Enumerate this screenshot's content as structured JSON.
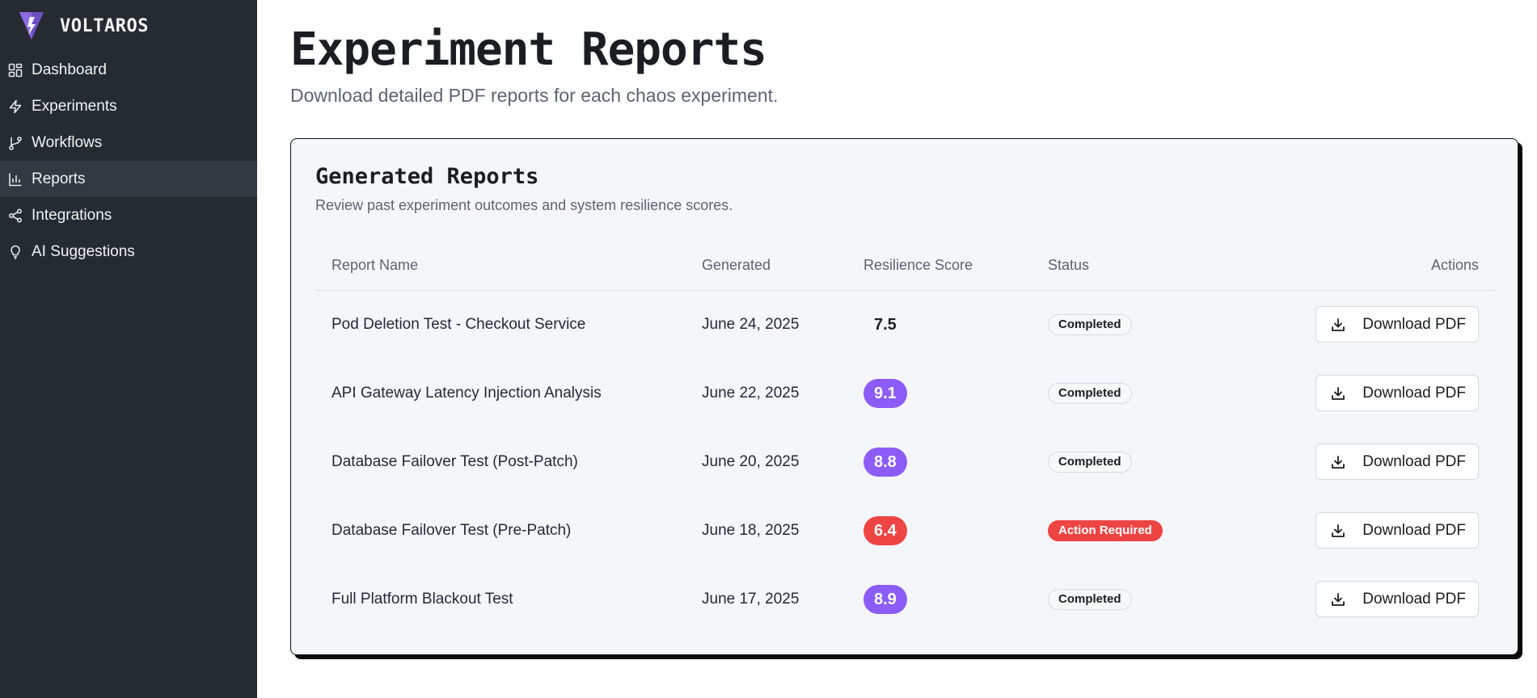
{
  "brand": {
    "name": "VOLTAROS",
    "logo_icon": "voltaros-logo-icon"
  },
  "sidebar": {
    "items": [
      {
        "label": "Dashboard",
        "icon": "grid-icon",
        "active": false
      },
      {
        "label": "Experiments",
        "icon": "lightning-icon",
        "active": false
      },
      {
        "label": "Workflows",
        "icon": "git-branch-icon",
        "active": false
      },
      {
        "label": "Reports",
        "icon": "bar-chart-icon",
        "active": true
      },
      {
        "label": "Integrations",
        "icon": "share-icon",
        "active": false
      },
      {
        "label": "AI Suggestions",
        "icon": "lightbulb-icon",
        "active": false
      }
    ]
  },
  "page": {
    "title": "Experiment Reports",
    "subtitle": "Download detailed PDF reports for each chaos experiment."
  },
  "card": {
    "title": "Generated Reports",
    "subtitle": "Review past experiment outcomes and system resilience scores."
  },
  "table": {
    "headers": {
      "name": "Report Name",
      "generated": "Generated",
      "score": "Resilience Score",
      "status": "Status",
      "actions": "Actions"
    },
    "download_label": "Download PDF",
    "rows": [
      {
        "name": "Pod Deletion Test - Checkout Service",
        "generated": "June 24, 2025",
        "score": "7.5",
        "score_style": "plain",
        "status": "Completed",
        "status_style": "completed"
      },
      {
        "name": "API Gateway Latency Injection Analysis",
        "generated": "June 22, 2025",
        "score": "9.1",
        "score_style": "purple",
        "status": "Completed",
        "status_style": "completed"
      },
      {
        "name": "Database Failover Test (Post-Patch)",
        "generated": "June 20, 2025",
        "score": "8.8",
        "score_style": "purple",
        "status": "Completed",
        "status_style": "completed"
      },
      {
        "name": "Database Failover Test (Pre-Patch)",
        "generated": "June 18, 2025",
        "score": "6.4",
        "score_style": "red",
        "status": "Action Required",
        "status_style": "action"
      },
      {
        "name": "Full Platform Blackout Test",
        "generated": "June 17, 2025",
        "score": "8.9",
        "score_style": "purple",
        "status": "Completed",
        "status_style": "completed"
      }
    ]
  },
  "colors": {
    "sidebar_bg": "#262a31",
    "accent_purple": "#8b5cf6",
    "danger_red": "#ef4444"
  }
}
